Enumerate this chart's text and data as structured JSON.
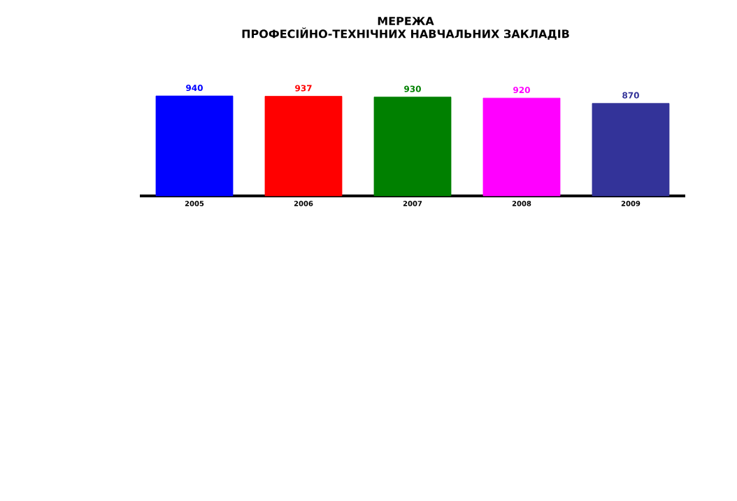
{
  "chart_data": {
    "type": "bar",
    "title": "МЕРЕЖА",
    "subtitle": "ПРОФЕСІЙНО-ТЕХНІЧНИХ НАВЧАЛЬНИХ ЗАКЛАДІВ",
    "categories": [
      "2005",
      "2006",
      "2007",
      "2008",
      "2009"
    ],
    "values": [
      940,
      937,
      930,
      920,
      870
    ],
    "colors": [
      "#0000ff",
      "#ff0000",
      "#008000",
      "#ff00ff",
      "#333399"
    ],
    "data_labels": true
  }
}
